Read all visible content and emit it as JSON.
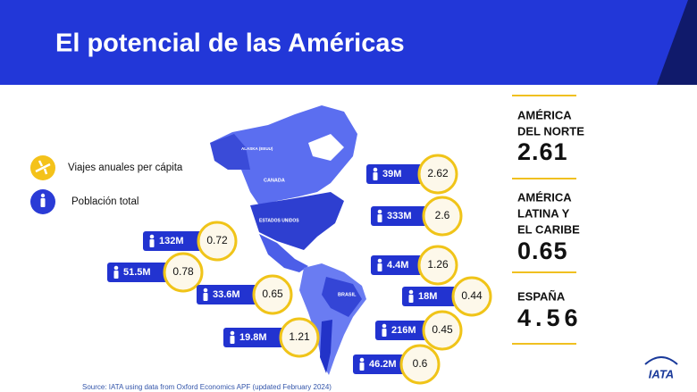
{
  "header": {
    "title": "El potencial de las Américas"
  },
  "legend": [
    "Viajes anuales per cápita",
    "Población total"
  ],
  "map_labels": [
    "ALASKA (EEUU)",
    "CANADA",
    "ESTADOS UNIDOS",
    "BRASIL"
  ],
  "callouts": [
    {
      "population": "39M",
      "trips": 2.62
    },
    {
      "population": "333M",
      "trips": 2.6
    },
    {
      "population": "132M",
      "trips": 0.72
    },
    {
      "population": "4.4M",
      "trips": 1.26
    },
    {
      "population": "51.5M",
      "trips": 0.78
    },
    {
      "population": "33.6M",
      "trips": 0.65
    },
    {
      "population": "18M",
      "trips": 0.44
    },
    {
      "population": "216M",
      "trips": 0.45
    },
    {
      "population": "19.8M",
      "trips": 1.21
    },
    {
      "population": "46.2M",
      "trips": 0.6
    }
  ],
  "stats": [
    {
      "label": [
        "AMÉRICA",
        "DEL NORTE"
      ],
      "value": 2.61
    },
    {
      "label": [
        "AMÉRICA",
        "LATINA Y",
        "EL CARIBE"
      ],
      "value": 0.65
    },
    {
      "label": [
        "ESPAÑA"
      ],
      "value": 4.56
    }
  ],
  "source": "Source: IATA using data from Oxford Economics APF (updated February 2024)",
  "logo": "IATA"
}
